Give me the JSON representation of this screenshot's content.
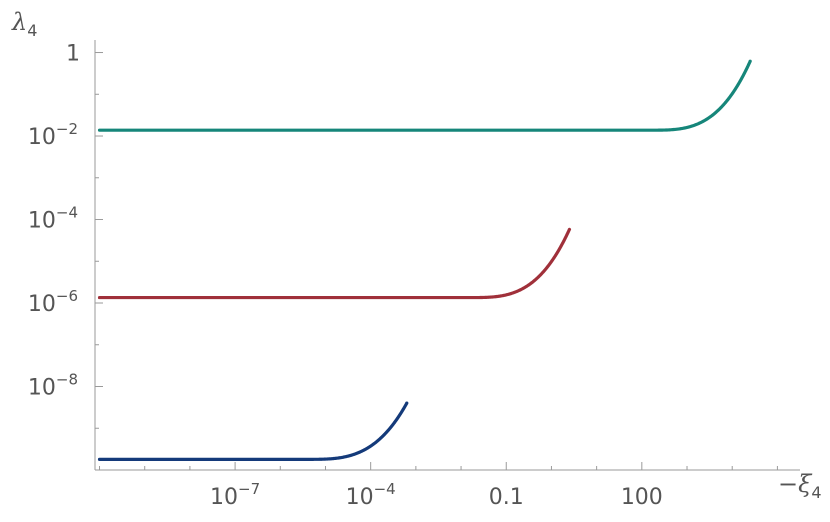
{
  "chart_data": {
    "type": "line",
    "title": "",
    "xlabel": "−ξ",
    "xlabel_sub": "4",
    "ylabel": "λ",
    "ylabel_sub": "4",
    "xscale": "log",
    "yscale": "log",
    "xlim_log10": [
      -10.1,
      5.5
    ],
    "ylim_log10": [
      -10.0,
      0.3
    ],
    "grid": false,
    "legend": "none",
    "x_ticks": [
      {
        "log10": -7,
        "base": "10",
        "exp": "−7"
      },
      {
        "log10": -4,
        "base": "10",
        "exp": "−4"
      },
      {
        "log10": -1,
        "base": "0.1",
        "exp": ""
      },
      {
        "log10": 2,
        "base": "100",
        "exp": ""
      }
    ],
    "y_ticks": [
      {
        "log10": 0,
        "base": "1",
        "exp": ""
      },
      {
        "log10": -2,
        "base": "10",
        "exp": "−2"
      },
      {
        "log10": -4,
        "base": "10",
        "exp": "−4"
      },
      {
        "log10": -6,
        "base": "10",
        "exp": "−6"
      },
      {
        "log10": -8,
        "base": "10",
        "exp": "−8"
      }
    ],
    "series": [
      {
        "color": "#16867a",
        "x_start": 1e-10,
        "x_end": 25000.0,
        "y_plateau": 0.0138,
        "y_end": 0.62,
        "divergence": 16000.0
      },
      {
        "color": "#a0303a",
        "x_start": 1e-10,
        "x_end": 2.5,
        "y_plateau": 1.35e-06,
        "y_end": 5.8e-05,
        "divergence": 1.6
      },
      {
        "color": "#143a7a",
        "x_start": 1e-10,
        "x_end": 0.00063,
        "y_plateau": 1.8e-10,
        "y_end": 4e-09,
        "divergence": 0.0004
      }
    ]
  }
}
